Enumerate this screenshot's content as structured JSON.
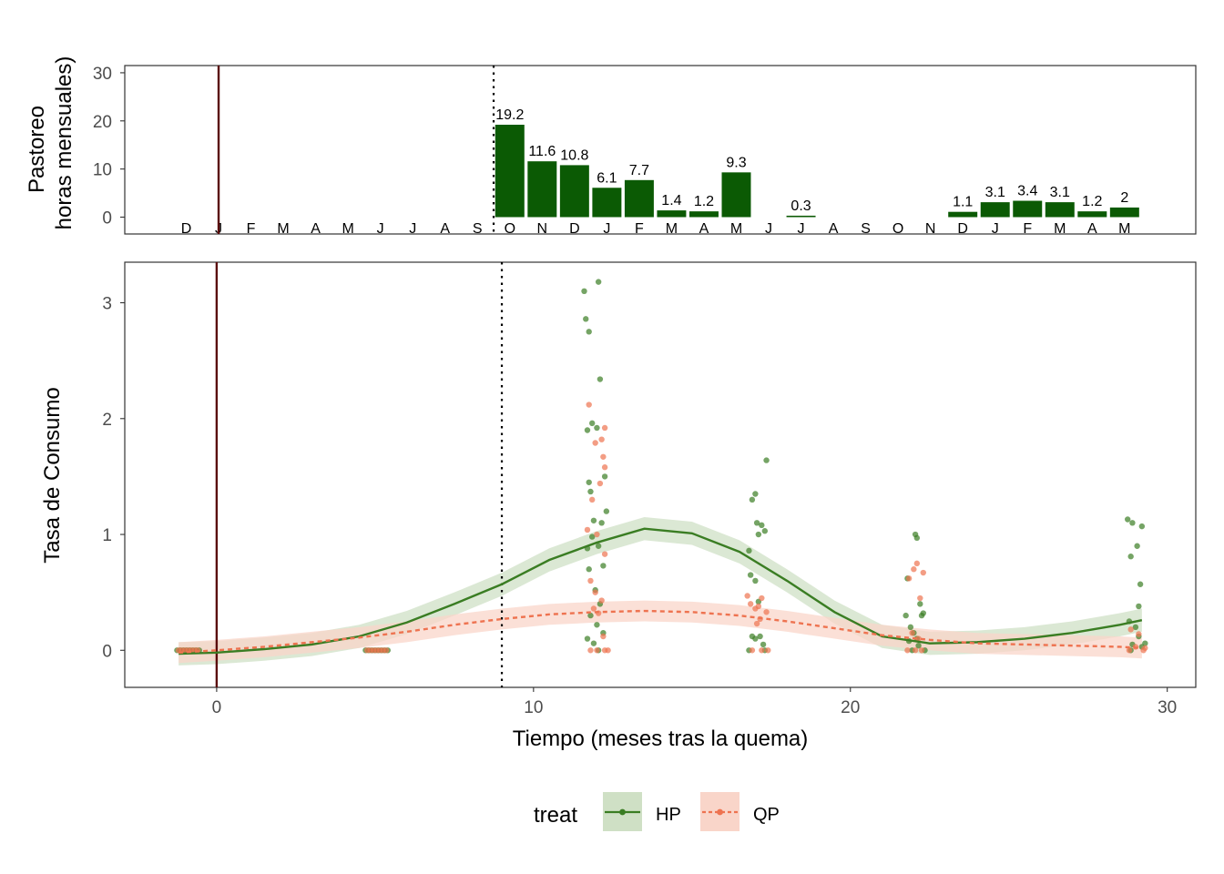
{
  "colors": {
    "hp": "#3a7d23",
    "hp_band": "#cfe0c5",
    "qp": "#ee7350",
    "qp_band": "#f9d5c9",
    "bar": "#0b5a04",
    "burn_line": "#5a0b0b"
  },
  "chart_data": [
    {
      "type": "bar",
      "ylabel_line1": "Pastoreo",
      "ylabel_line2": "horas mensuales)",
      "ylim": [
        -3.5,
        31.5
      ],
      "yticks": [
        0,
        10,
        20,
        30
      ],
      "months": [
        "D",
        "J",
        "F",
        "M",
        "A",
        "M",
        "J",
        "J",
        "A",
        "S",
        "O",
        "N",
        "D",
        "J",
        "F",
        "M",
        "A",
        "M",
        "J",
        "J",
        "A",
        "S",
        "O",
        "N",
        "D",
        "J",
        "F",
        "M",
        "A",
        "M"
      ],
      "month_x": [
        -1,
        0,
        1,
        2,
        3,
        4,
        5,
        6,
        7,
        8,
        9,
        10,
        11,
        12,
        13,
        14,
        15,
        16,
        17,
        18,
        19,
        20,
        21,
        22,
        23,
        24,
        25,
        26,
        27,
        28
      ],
      "values": [
        null,
        null,
        null,
        null,
        null,
        null,
        null,
        null,
        null,
        null,
        19.2,
        11.6,
        10.8,
        6.1,
        7.7,
        1.4,
        1.2,
        9.3,
        null,
        0.3,
        null,
        null,
        null,
        null,
        1.1,
        3.1,
        3.4,
        3.1,
        1.2,
        2
      ],
      "value_labels": [
        "",
        "",
        "",
        "",
        "",
        "",
        "",
        "",
        "",
        "",
        "19.2",
        "11.6",
        "10.8",
        "6.1",
        "7.7",
        "1.4",
        "1.2",
        "9.3",
        "",
        "0.3",
        "",
        "",
        "",
        "",
        "1.1",
        "3.1",
        "3.4",
        "3.1",
        "1.2",
        "2"
      ],
      "burn_x": 0,
      "grazing_start_x": 8.5,
      "xlim": [
        -2.9,
        30.2
      ]
    },
    {
      "type": "scatter",
      "ylabel": "Tasa de Consumo",
      "xlabel": "Tiempo (meses tras la quema)",
      "xlim": [
        -2.9,
        30.9
      ],
      "ylim": [
        -0.32,
        3.35
      ],
      "xticks": [
        0,
        10,
        20,
        30
      ],
      "yticks": [
        0,
        1,
        2,
        3
      ],
      "burn_x": 0,
      "grazing_start_x": 9,
      "series": [
        {
          "name": "HP",
          "smooth_x": [
            -1.2,
            0,
            1.5,
            3,
            4.5,
            6,
            7.5,
            9,
            10.5,
            12,
            13.5,
            15,
            16.5,
            18,
            19.5,
            21,
            22.5,
            24,
            25.5,
            27,
            28.5,
            29.2
          ],
          "smooth_y": [
            -0.03,
            -0.02,
            0.01,
            0.05,
            0.12,
            0.24,
            0.4,
            0.57,
            0.78,
            0.93,
            1.05,
            1.01,
            0.85,
            0.6,
            0.33,
            0.12,
            0.06,
            0.07,
            0.1,
            0.15,
            0.22,
            0.26
          ],
          "band_halfwidth": 0.1,
          "points": [
            [
              -1.25,
              0
            ],
            [
              -1.15,
              0
            ],
            [
              -1.05,
              0
            ],
            [
              -0.95,
              0
            ],
            [
              -0.85,
              0
            ],
            [
              -0.75,
              0
            ],
            [
              -0.65,
              0
            ],
            [
              -0.55,
              0
            ],
            [
              4.7,
              0
            ],
            [
              4.8,
              0
            ],
            [
              4.9,
              0
            ],
            [
              5.0,
              0
            ],
            [
              5.1,
              0
            ],
            [
              5.2,
              0
            ],
            [
              5.3,
              0
            ],
            [
              5.4,
              0
            ],
            [
              11.6,
              3.1
            ],
            [
              11.65,
              2.86
            ],
            [
              11.75,
              2.75
            ],
            [
              12.05,
              3.18
            ],
            [
              12.1,
              2.34
            ],
            [
              11.7,
              1.9
            ],
            [
              11.85,
              1.96
            ],
            [
              12.0,
              1.92
            ],
            [
              11.75,
              1.45
            ],
            [
              11.8,
              1.37
            ],
            [
              12.25,
              1.5
            ],
            [
              11.9,
              1.12
            ],
            [
              12.15,
              1.1
            ],
            [
              12.3,
              1.2
            ],
            [
              11.7,
              0.88
            ],
            [
              11.85,
              0.98
            ],
            [
              12.05,
              0.9
            ],
            [
              12.2,
              0.73
            ],
            [
              11.75,
              0.7
            ],
            [
              11.95,
              0.52
            ],
            [
              12.1,
              0.4
            ],
            [
              11.8,
              0.3
            ],
            [
              12.0,
              0.22
            ],
            [
              12.2,
              0.15
            ],
            [
              11.9,
              0.06
            ],
            [
              12.05,
              0
            ],
            [
              11.7,
              0.1
            ],
            [
              16.8,
              0.86
            ],
            [
              16.9,
              1.3
            ],
            [
              17.0,
              1.35
            ],
            [
              17.05,
              1.1
            ],
            [
              17.1,
              1.0
            ],
            [
              17.2,
              1.08
            ],
            [
              17.3,
              1.03
            ],
            [
              17.35,
              1.64
            ],
            [
              16.85,
              0.65
            ],
            [
              17.0,
              0.6
            ],
            [
              17.1,
              0.42
            ],
            [
              17.25,
              0.05
            ],
            [
              16.9,
              0.12
            ],
            [
              17.0,
              0.1
            ],
            [
              17.15,
              0.12
            ],
            [
              16.8,
              0
            ],
            [
              17.3,
              0
            ],
            [
              21.75,
              0.3
            ],
            [
              21.8,
              0.62
            ],
            [
              21.9,
              0.2
            ],
            [
              22.0,
              0.15
            ],
            [
              22.05,
              1.0
            ],
            [
              22.1,
              0.97
            ],
            [
              22.2,
              0.4
            ],
            [
              22.25,
              0.3
            ],
            [
              22.3,
              0.32
            ],
            [
              21.85,
              0.08
            ],
            [
              22.1,
              0.1
            ],
            [
              22.15,
              0.04
            ],
            [
              21.95,
              0
            ],
            [
              22.35,
              0
            ],
            [
              28.75,
              1.13
            ],
            [
              28.9,
              1.1
            ],
            [
              29.2,
              1.07
            ],
            [
              28.85,
              0.81
            ],
            [
              29.05,
              0.9
            ],
            [
              29.15,
              0.57
            ],
            [
              29.1,
              0.38
            ],
            [
              28.8,
              0.25
            ],
            [
              29.0,
              0.2
            ],
            [
              29.1,
              0.12
            ],
            [
              28.9,
              0.05
            ],
            [
              29.2,
              0.03
            ],
            [
              29.3,
              0.06
            ],
            [
              28.85,
              0
            ]
          ]
        },
        {
          "name": "QP",
          "smooth_x": [
            -1.2,
            0,
            1.5,
            3,
            4.5,
            6,
            7.5,
            9,
            10.5,
            12,
            13.5,
            15,
            16.5,
            18,
            19.5,
            21,
            22.5,
            24,
            25.5,
            27,
            28.5,
            29.2
          ],
          "smooth_y": [
            -0.02,
            0,
            0.03,
            0.07,
            0.11,
            0.16,
            0.22,
            0.27,
            0.31,
            0.33,
            0.34,
            0.33,
            0.3,
            0.25,
            0.19,
            0.13,
            0.09,
            0.06,
            0.05,
            0.04,
            0.03,
            0.02
          ],
          "band_halfwidth": 0.09,
          "points": [
            [
              -1.2,
              0
            ],
            [
              -1.1,
              0
            ],
            [
              -1.0,
              0
            ],
            [
              -0.9,
              0
            ],
            [
              -0.8,
              0
            ],
            [
              -0.7,
              0
            ],
            [
              -0.6,
              0
            ],
            [
              4.75,
              0
            ],
            [
              4.85,
              0
            ],
            [
              4.95,
              0
            ],
            [
              5.05,
              0
            ],
            [
              5.15,
              0
            ],
            [
              5.25,
              0
            ],
            [
              5.35,
              0
            ],
            [
              11.75,
              2.12
            ],
            [
              11.95,
              1.79
            ],
            [
              12.25,
              1.92
            ],
            [
              12.15,
              1.82
            ],
            [
              12.2,
              1.67
            ],
            [
              12.25,
              1.58
            ],
            [
              12.1,
              1.44
            ],
            [
              11.85,
              1.3
            ],
            [
              11.7,
              1.04
            ],
            [
              12.0,
              1.0
            ],
            [
              12.25,
              0.83
            ],
            [
              11.8,
              0.6
            ],
            [
              11.95,
              0.5
            ],
            [
              12.15,
              0.43
            ],
            [
              11.9,
              0.36
            ],
            [
              12.05,
              0.32
            ],
            [
              12.2,
              0.12
            ],
            [
              11.8,
              0
            ],
            [
              12.0,
              0
            ],
            [
              12.25,
              0
            ],
            [
              12.35,
              0
            ],
            [
              16.75,
              0.47
            ],
            [
              16.85,
              0.4
            ],
            [
              17.0,
              0.36
            ],
            [
              17.1,
              0.38
            ],
            [
              17.2,
              0.45
            ],
            [
              17.35,
              0.33
            ],
            [
              17.05,
              0.23
            ],
            [
              17.15,
              0.27
            ],
            [
              16.9,
              0
            ],
            [
              17.2,
              0
            ],
            [
              17.4,
              0
            ],
            [
              21.85,
              0.62
            ],
            [
              22.0,
              0.7
            ],
            [
              22.1,
              0.75
            ],
            [
              22.3,
              0.67
            ],
            [
              22.2,
              0.45
            ],
            [
              21.95,
              0.15
            ],
            [
              22.15,
              0.1
            ],
            [
              21.8,
              0
            ],
            [
              22.05,
              0
            ],
            [
              22.25,
              0
            ],
            [
              28.85,
              0.18
            ],
            [
              29.0,
              0.03
            ],
            [
              29.1,
              0.14
            ],
            [
              28.8,
              0
            ],
            [
              29.25,
              0
            ],
            [
              29.3,
              0.02
            ]
          ]
        }
      ]
    }
  ],
  "legend": {
    "title": "treat",
    "items": [
      "HP",
      "QP"
    ]
  }
}
